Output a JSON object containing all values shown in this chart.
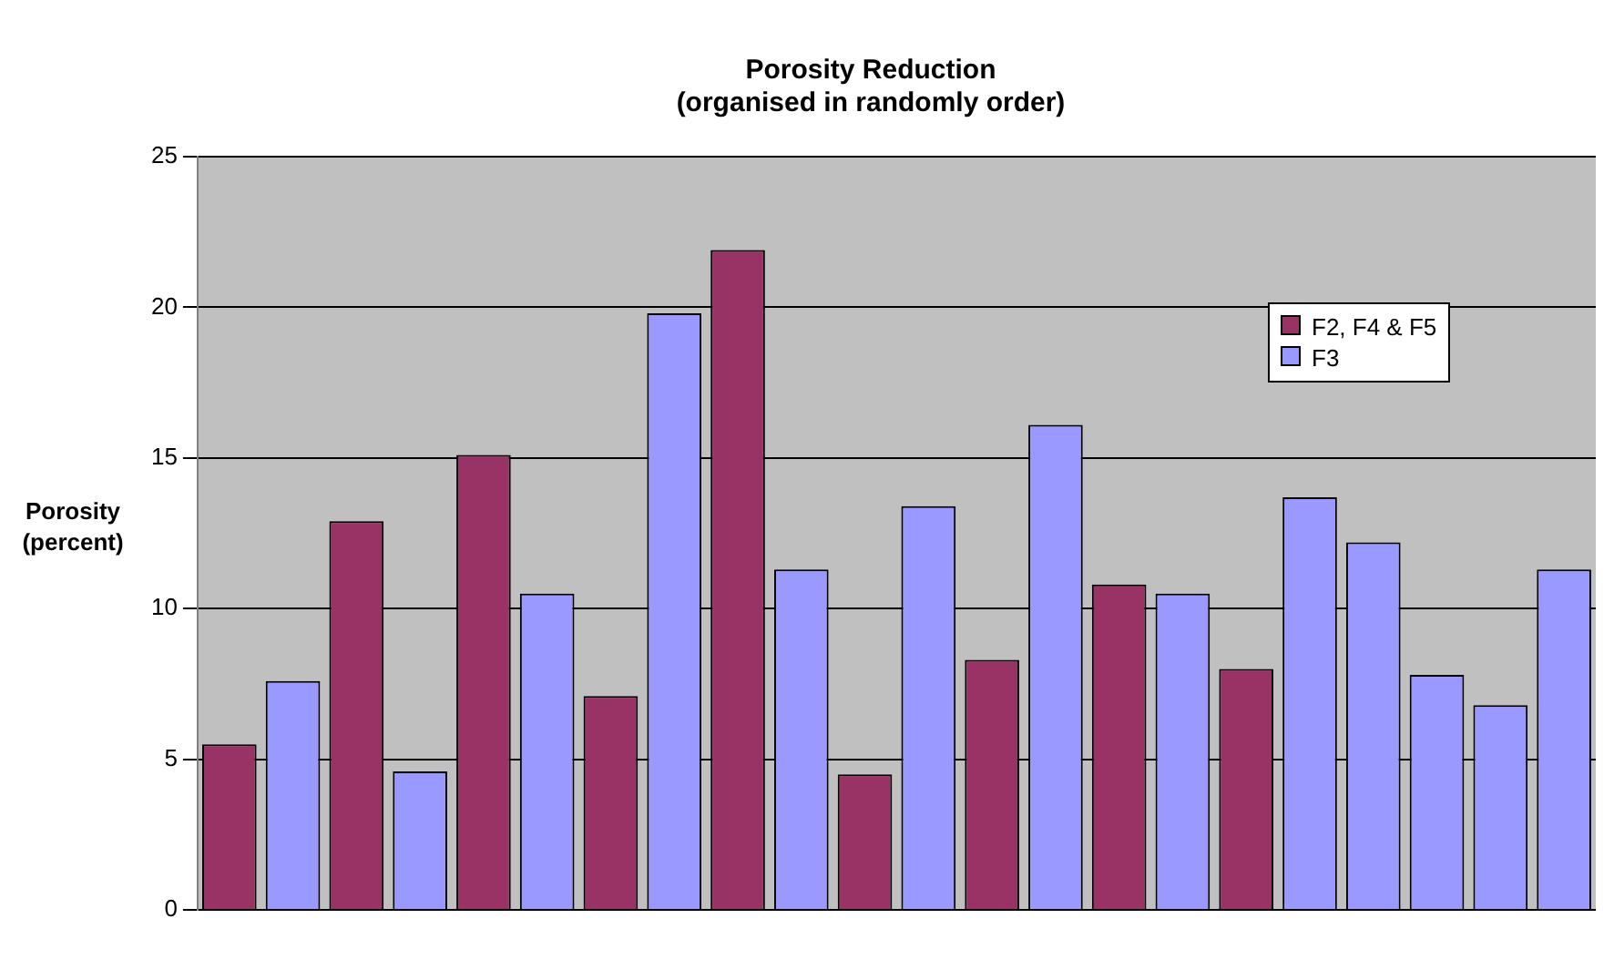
{
  "chart_data": {
    "type": "bar",
    "title": "Porosity Reduction\n(organised in randomly order)",
    "ylabel": "Porosity\n(percent)",
    "categories": [
      null,
      null,
      null,
      null,
      null,
      null,
      null,
      null,
      null,
      null,
      null,
      null,
      null,
      null,
      null,
      null,
      null,
      null,
      null,
      null,
      null,
      null
    ],
    "series": [
      {
        "name": "F2, F4 & F5",
        "color": "#993366",
        "values": [
          5.5,
          null,
          12.9,
          null,
          15.1,
          null,
          7.1,
          null,
          21.9,
          null,
          4.5,
          null,
          8.3,
          null,
          10.8,
          null,
          8.0,
          null,
          null,
          null,
          null,
          null
        ]
      },
      {
        "name": "F3",
        "color": "#9999ff",
        "values": [
          null,
          7.6,
          null,
          4.6,
          null,
          10.5,
          null,
          19.8,
          null,
          11.3,
          null,
          13.4,
          null,
          16.1,
          null,
          10.5,
          null,
          13.7,
          12.2,
          7.8,
          6.8,
          11.3
        ]
      }
    ],
    "ylim": [
      0,
      25
    ],
    "yticks": [
      0,
      5,
      10,
      15,
      20,
      25
    ],
    "grid": "y",
    "legend": "top right"
  }
}
